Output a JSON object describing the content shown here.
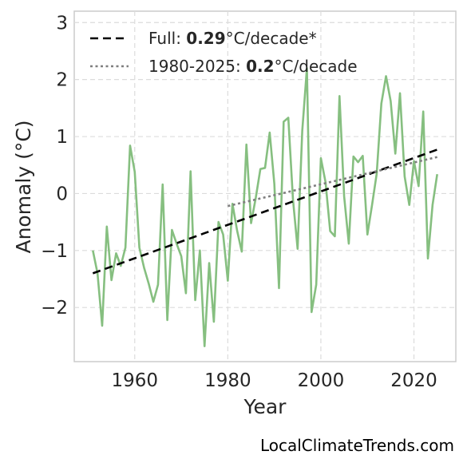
{
  "chart_data": {
    "type": "line",
    "xlabel": "Year",
    "ylabel": "Anomaly (°C)",
    "xlim": [
      1947,
      2029
    ],
    "ylim": [
      -2.95,
      3.2
    ],
    "xticks": [
      1960,
      1980,
      2000,
      2020
    ],
    "yticks": [
      -2,
      -1,
      0,
      1,
      2,
      3
    ],
    "ytick_labels": [
      "−2",
      "−1",
      "0",
      "1",
      "2",
      "3"
    ],
    "grid": true,
    "legend_position": "top-left",
    "series": [
      {
        "style": "solid",
        "color": "#86bf80",
        "x": [
          1951,
          1952,
          1953,
          1954,
          1955,
          1956,
          1957,
          1958,
          1959,
          1960,
          1961,
          1962,
          1963,
          1964,
          1965,
          1966,
          1967,
          1968,
          1969,
          1970,
          1971,
          1972,
          1973,
          1974,
          1975,
          1976,
          1977,
          1978,
          1979,
          1980,
          1981,
          1982,
          1983,
          1984,
          1985,
          1986,
          1987,
          1988,
          1989,
          1990,
          1991,
          1992,
          1993,
          1994,
          1995,
          1996,
          1997,
          1998,
          1999,
          2000,
          2001,
          2002,
          2003,
          2004,
          2005,
          2006,
          2007,
          2008,
          2009,
          2010,
          2011,
          2012,
          2013,
          2014,
          2015,
          2016,
          2017,
          2018,
          2019,
          2020,
          2021,
          2022,
          2023,
          2024,
          2025
        ],
        "y": [
          -1.0,
          -1.4,
          -2.32,
          -0.58,
          -1.52,
          -1.05,
          -1.27,
          -0.95,
          0.84,
          0.38,
          -0.95,
          -1.3,
          -1.58,
          -1.9,
          -1.6,
          0.16,
          -2.22,
          -0.64,
          -0.88,
          -1.1,
          -1.75,
          0.39,
          -1.87,
          -1.0,
          -2.68,
          -1.22,
          -2.25,
          -0.5,
          -0.72,
          -1.53,
          -0.18,
          -0.65,
          -1.02,
          0.86,
          -0.52,
          -0.08,
          0.43,
          0.45,
          1.07,
          0.17,
          -1.66,
          1.26,
          1.33,
          -0.1,
          -0.97,
          1.1,
          2.2,
          -2.08,
          -1.6,
          0.62,
          0.2,
          -0.66,
          -0.75,
          1.71,
          -0.05,
          -0.88,
          0.65,
          0.55,
          0.66,
          -0.72,
          -0.2,
          0.35,
          1.58,
          2.06,
          1.62,
          0.7,
          1.76,
          0.3,
          -0.2,
          0.57,
          0.13,
          1.44,
          -1.14,
          -0.2,
          0.34
        ]
      }
    ],
    "trendlines": [
      {
        "label_prefix": "Full: ",
        "label_value": "0.29",
        "label_suffix": "°C/decade*",
        "style": "dashed",
        "color": "#000000",
        "x": [
          1951,
          2025
        ],
        "y": [
          -1.4,
          0.77
        ]
      },
      {
        "label_prefix": "1980-2025: ",
        "label_value": "0.2",
        "label_suffix": "°C/decade",
        "style": "dotted",
        "color": "#7f7f7f",
        "x": [
          1980,
          2025
        ],
        "y": [
          -0.22,
          0.64
        ]
      }
    ]
  },
  "credit": "LocalClimateTrends.com"
}
